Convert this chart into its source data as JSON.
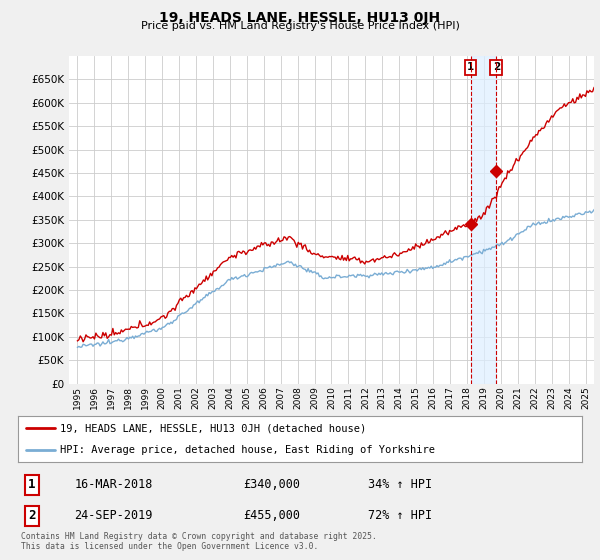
{
  "title": "19, HEADS LANE, HESSLE, HU13 0JH",
  "subtitle": "Price paid vs. HM Land Registry's House Price Index (HPI)",
  "legend_line1": "19, HEADS LANE, HESSLE, HU13 0JH (detached house)",
  "legend_line2": "HPI: Average price, detached house, East Riding of Yorkshire",
  "footnote": "Contains HM Land Registry data © Crown copyright and database right 2025.\nThis data is licensed under the Open Government Licence v3.0.",
  "sale1_date": "16-MAR-2018",
  "sale1_price": "£340,000",
  "sale1_hpi": "34% ↑ HPI",
  "sale2_date": "24-SEP-2019",
  "sale2_price": "£455,000",
  "sale2_hpi": "72% ↑ HPI",
  "sale1_x": 2018.21,
  "sale1_y": 340000,
  "sale2_x": 2019.73,
  "sale2_y": 455000,
  "red_color": "#cc0000",
  "blue_color": "#7aadd4",
  "shade_color": "#ddeeff",
  "bg_color": "#f0f0f0",
  "plot_bg": "#ffffff",
  "grid_color": "#cccccc",
  "ylim": [
    0,
    700000
  ],
  "yticks": [
    0,
    50000,
    100000,
    150000,
    200000,
    250000,
    300000,
    350000,
    400000,
    450000,
    500000,
    550000,
    600000,
    650000
  ],
  "xlim": [
    1994.5,
    2025.5
  ]
}
